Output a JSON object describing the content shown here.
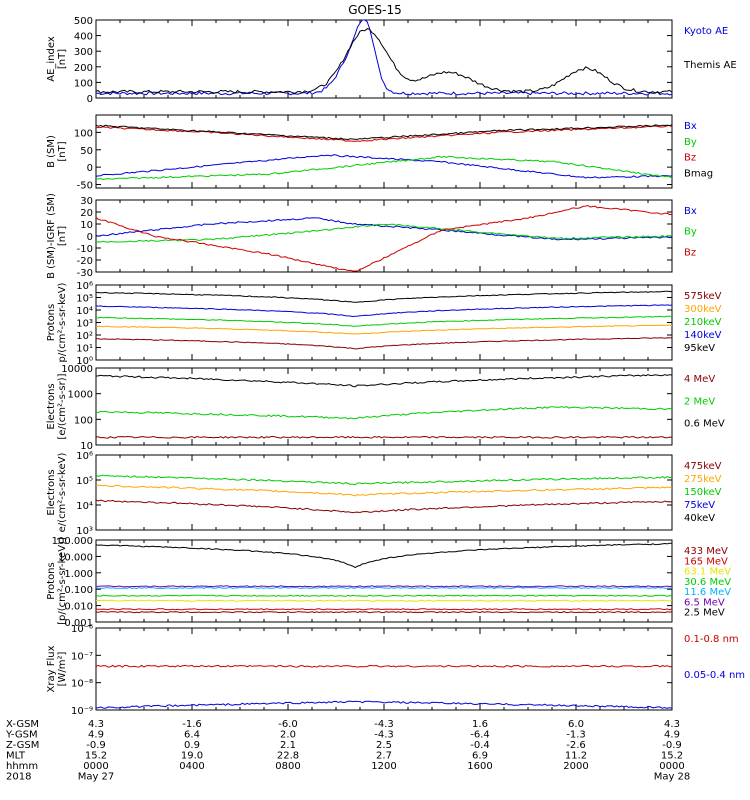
{
  "title": "GOES-15",
  "colors": {
    "blue": "#0000dd",
    "red": "#cc0000",
    "green": "#00cc00",
    "darkred": "#880000",
    "orange": "#ffa500",
    "black": "#000000",
    "yellow": "#e6e600",
    "cyan": "#00b0ff",
    "purple": "#7700aa"
  },
  "chart_data": [
    {
      "type": "line",
      "ylabel": "AE_index",
      "yunit": "[nT]",
      "ylim": [
        0,
        500
      ],
      "ticks": [
        "0",
        "100",
        "200",
        "300",
        "400",
        "500"
      ],
      "series": [
        {
          "name": "Kyoto AE",
          "color": "blue",
          "base": 0.06,
          "noise": 0.04,
          "bumps": [
            [
              0.45,
              0.55,
              0.035
            ],
            [
              0.47,
              0.55,
              0.02
            ]
          ]
        },
        {
          "name": "Themis AE",
          "color": "black",
          "base": 0.08,
          "noise": 0.04,
          "bumps": [
            [
              0.47,
              0.8,
              0.05
            ],
            [
              0.61,
              0.25,
              0.06
            ],
            [
              0.85,
              0.3,
              0.05
            ]
          ]
        }
      ]
    },
    {
      "type": "line",
      "ylabel": "B (SM)",
      "yunit": "[nT]",
      "ylim": [
        -60,
        150
      ],
      "ticks": [
        "-50",
        "0",
        "50",
        "100"
      ],
      "series": [
        {
          "name": "Bx",
          "color": "blue",
          "curve": [
            [
              0,
              -25
            ],
            [
              0.4,
              35
            ],
            [
              0.6,
              15
            ],
            [
              0.85,
              -30
            ],
            [
              1,
              -25
            ]
          ]
        },
        {
          "name": "By",
          "color": "green",
          "curve": [
            [
              0,
              -35
            ],
            [
              0.3,
              -20
            ],
            [
              0.6,
              30
            ],
            [
              0.8,
              15
            ],
            [
              1,
              -30
            ]
          ]
        },
        {
          "name": "Bz",
          "color": "red",
          "curve": [
            [
              0,
              115
            ],
            [
              0.2,
              100
            ],
            [
              0.45,
              75
            ],
            [
              0.7,
              100
            ],
            [
              1,
              118
            ]
          ]
        },
        {
          "name": "Bmag",
          "color": "black",
          "curve": [
            [
              0,
              120
            ],
            [
              0.2,
              102
            ],
            [
              0.45,
              80
            ],
            [
              0.7,
              105
            ],
            [
              1,
              121
            ]
          ]
        }
      ]
    },
    {
      "type": "line",
      "ylabel": "B (SM)-IGRF (SM)",
      "yunit": "[nT]",
      "ylim": [
        -30,
        30
      ],
      "ticks": [
        "-30",
        "-20",
        "-10",
        "0",
        "10",
        "20",
        "30"
      ],
      "series": [
        {
          "name": "Bx",
          "color": "blue",
          "curve": [
            [
              0,
              0
            ],
            [
              0.2,
              10
            ],
            [
              0.38,
              15
            ],
            [
              0.45,
              10
            ],
            [
              0.6,
              5
            ],
            [
              0.8,
              -3
            ],
            [
              1,
              -1
            ]
          ]
        },
        {
          "name": "By",
          "color": "green",
          "curve": [
            [
              0,
              -5
            ],
            [
              0.2,
              -3
            ],
            [
              0.4,
              5
            ],
            [
              0.5,
              10
            ],
            [
              0.8,
              -2
            ],
            [
              1,
              0
            ]
          ]
        },
        {
          "name": "Bz",
          "color": "red",
          "curve": [
            [
              0,
              15
            ],
            [
              0.1,
              0
            ],
            [
              0.3,
              -15
            ],
            [
              0.45,
              -30
            ],
            [
              0.6,
              5
            ],
            [
              0.75,
              15
            ],
            [
              0.85,
              25
            ],
            [
              1,
              18
            ]
          ]
        }
      ]
    },
    {
      "type": "line",
      "ylabel": "Protons",
      "yunit": "p/(cm²-s-sr-keV)",
      "ylim": [
        1,
        1000000
      ],
      "log": true,
      "ticks": [
        "10⁰",
        "10¹",
        "10²",
        "10³",
        "10⁴",
        "10⁵",
        "10⁶"
      ],
      "series": [
        {
          "name": "575keV",
          "color": "darkred",
          "curve": [
            [
              0,
              50
            ],
            [
              0.45,
              8
            ],
            [
              1,
              60
            ]
          ]
        },
        {
          "name": "300keV",
          "color": "orange",
          "curve": [
            [
              0,
              500
            ],
            [
              0.45,
              120
            ],
            [
              1,
              600
            ]
          ]
        },
        {
          "name": "210keV",
          "color": "green",
          "curve": [
            [
              0,
              2500
            ],
            [
              0.45,
              500
            ],
            [
              1,
              3000
            ]
          ]
        },
        {
          "name": "140keV",
          "color": "blue",
          "curve": [
            [
              0,
              20000
            ],
            [
              0.45,
              3000
            ],
            [
              1,
              25000
            ]
          ]
        },
        {
          "name": "95keV",
          "color": "black",
          "curve": [
            [
              0,
              250000
            ],
            [
              0.45,
              40000
            ],
            [
              1,
              300000
            ]
          ]
        }
      ]
    },
    {
      "type": "line",
      "ylabel": "Electrons",
      "yunit": "[e/(cm²-s-sr)]",
      "ylim": [
        10,
        10000
      ],
      "log": true,
      "ticks": [
        "10",
        "100",
        "1000",
        "10000"
      ],
      "series": [
        {
          "name": "4 MeV",
          "color": "darkred",
          "curve": [
            [
              0,
              20
            ],
            [
              1,
              20
            ]
          ]
        },
        {
          "name": "2 MeV",
          "color": "green",
          "curve": [
            [
              0,
              200
            ],
            [
              0.45,
              110
            ],
            [
              0.8,
              300
            ],
            [
              1,
              250
            ]
          ]
        },
        {
          "name": "0.6 MeV",
          "color": "black",
          "curve": [
            [
              0,
              5000
            ],
            [
              0.45,
              2000
            ],
            [
              1,
              5500
            ]
          ]
        }
      ]
    },
    {
      "type": "line",
      "ylabel": "Electrons",
      "yunit": "e/(cm²-s-sr-keV)",
      "ylim": [
        1000,
        1000000
      ],
      "log": true,
      "ticks": [
        "10³",
        "10⁴",
        "10⁵",
        "10⁶"
      ],
      "series": [
        {
          "name": "475keV",
          "color": "darkred",
          "curve": [
            [
              0,
              15000
            ],
            [
              0.45,
              5000
            ],
            [
              1,
              14000
            ]
          ]
        },
        {
          "name": "275keV",
          "color": "orange",
          "curve": [
            [
              0,
              60000
            ],
            [
              0.45,
              25000
            ],
            [
              1,
              50000
            ]
          ]
        },
        {
          "name": "150keV",
          "color": "green",
          "curve": [
            [
              0,
              150000
            ],
            [
              0.45,
              70000
            ],
            [
              1,
              130000
            ]
          ]
        },
        {
          "name": "75keV",
          "color": "blue",
          "curve": [
            [
              0,
              0
            ],
            [
              1,
              0
            ]
          ]
        },
        {
          "name": "40keV",
          "color": "black",
          "curve": [
            [
              0,
              0
            ],
            [
              1,
              0
            ]
          ]
        }
      ]
    },
    {
      "type": "line",
      "ylabel": "Protons",
      "yunit": "[p/(cm²-s-sr-keV)]",
      "ylim": [
        0.001,
        100
      ],
      "log": true,
      "ticks": [
        "0.001",
        "0.010",
        "0.100",
        "1.000",
        "10.000",
        "100.000"
      ],
      "series": [
        {
          "name": "433 MeV",
          "color": "darkred",
          "curve": [
            [
              0,
              0.004
            ],
            [
              1,
              0.004
            ]
          ]
        },
        {
          "name": "165 MeV",
          "color": "red",
          "curve": [
            [
              0,
              0.006
            ],
            [
              1,
              0.006
            ]
          ]
        },
        {
          "name": "63.1 MeV",
          "color": "yellow",
          "curve": [
            [
              0,
              0.02
            ],
            [
              1,
              0.02
            ]
          ]
        },
        {
          "name": "30.6 MeV",
          "color": "green",
          "curve": [
            [
              0,
              0.04
            ],
            [
              1,
              0.04
            ]
          ]
        },
        {
          "name": "11.6 MeV",
          "color": "cyan",
          "curve": [
            [
              0,
              0.12
            ],
            [
              1,
              0.12
            ]
          ]
        },
        {
          "name": "6.5 MeV",
          "color": "purple",
          "curve": [
            [
              0,
              0.15
            ],
            [
              1,
              0.15
            ]
          ]
        },
        {
          "name": "2.5 MeV",
          "color": "black",
          "curve": [
            [
              0,
              50
            ],
            [
              0.45,
              2
            ],
            [
              1,
              60
            ]
          ]
        }
      ]
    },
    {
      "type": "line",
      "ylabel": "Xray Flux",
      "yunit": "[W/m²]",
      "ylim": [
        1e-09,
        1e-06
      ],
      "log": true,
      "ticks": [
        "10⁻⁹",
        "10⁻⁸",
        "10⁻⁷",
        "10⁻⁶"
      ],
      "series": [
        {
          "name": "0.1-0.8 nm",
          "color": "red",
          "curve": [
            [
              0,
              4e-08
            ],
            [
              1,
              4e-08
            ]
          ]
        },
        {
          "name": "0.05-0.4 nm",
          "color": "blue",
          "curve": [
            [
              0,
              1.2e-09
            ],
            [
              0.45,
              2e-09
            ],
            [
              1,
              1.2e-09
            ]
          ]
        }
      ]
    }
  ],
  "axis_rows": [
    {
      "label": "X-GSM",
      "values": [
        "4.3",
        "-1.6",
        "-6.0",
        "-4.3",
        "1.6",
        "6.0",
        "4.3"
      ]
    },
    {
      "label": "Y-GSM",
      "values": [
        "4.9",
        "6.4",
        "2.0",
        "-4.3",
        "-6.4",
        "-1.3",
        "4.9"
      ]
    },
    {
      "label": "Z-GSM",
      "values": [
        "-0.9",
        "0.9",
        "2.1",
        "2.5",
        "-0.4",
        "-2.6",
        "-0.9"
      ]
    },
    {
      "label": "MLT",
      "values": [
        "15.2",
        "19.0",
        "22.8",
        "2.7",
        "6.9",
        "11.2",
        "15.2"
      ]
    },
    {
      "label": "hhmm",
      "values": [
        "0000",
        "0400",
        "0800",
        "1200",
        "1600",
        "2000",
        "0000"
      ]
    },
    {
      "label": "2018",
      "values": [
        "May 27",
        "",
        "",
        "",
        "",
        "",
        "May 28"
      ]
    }
  ]
}
